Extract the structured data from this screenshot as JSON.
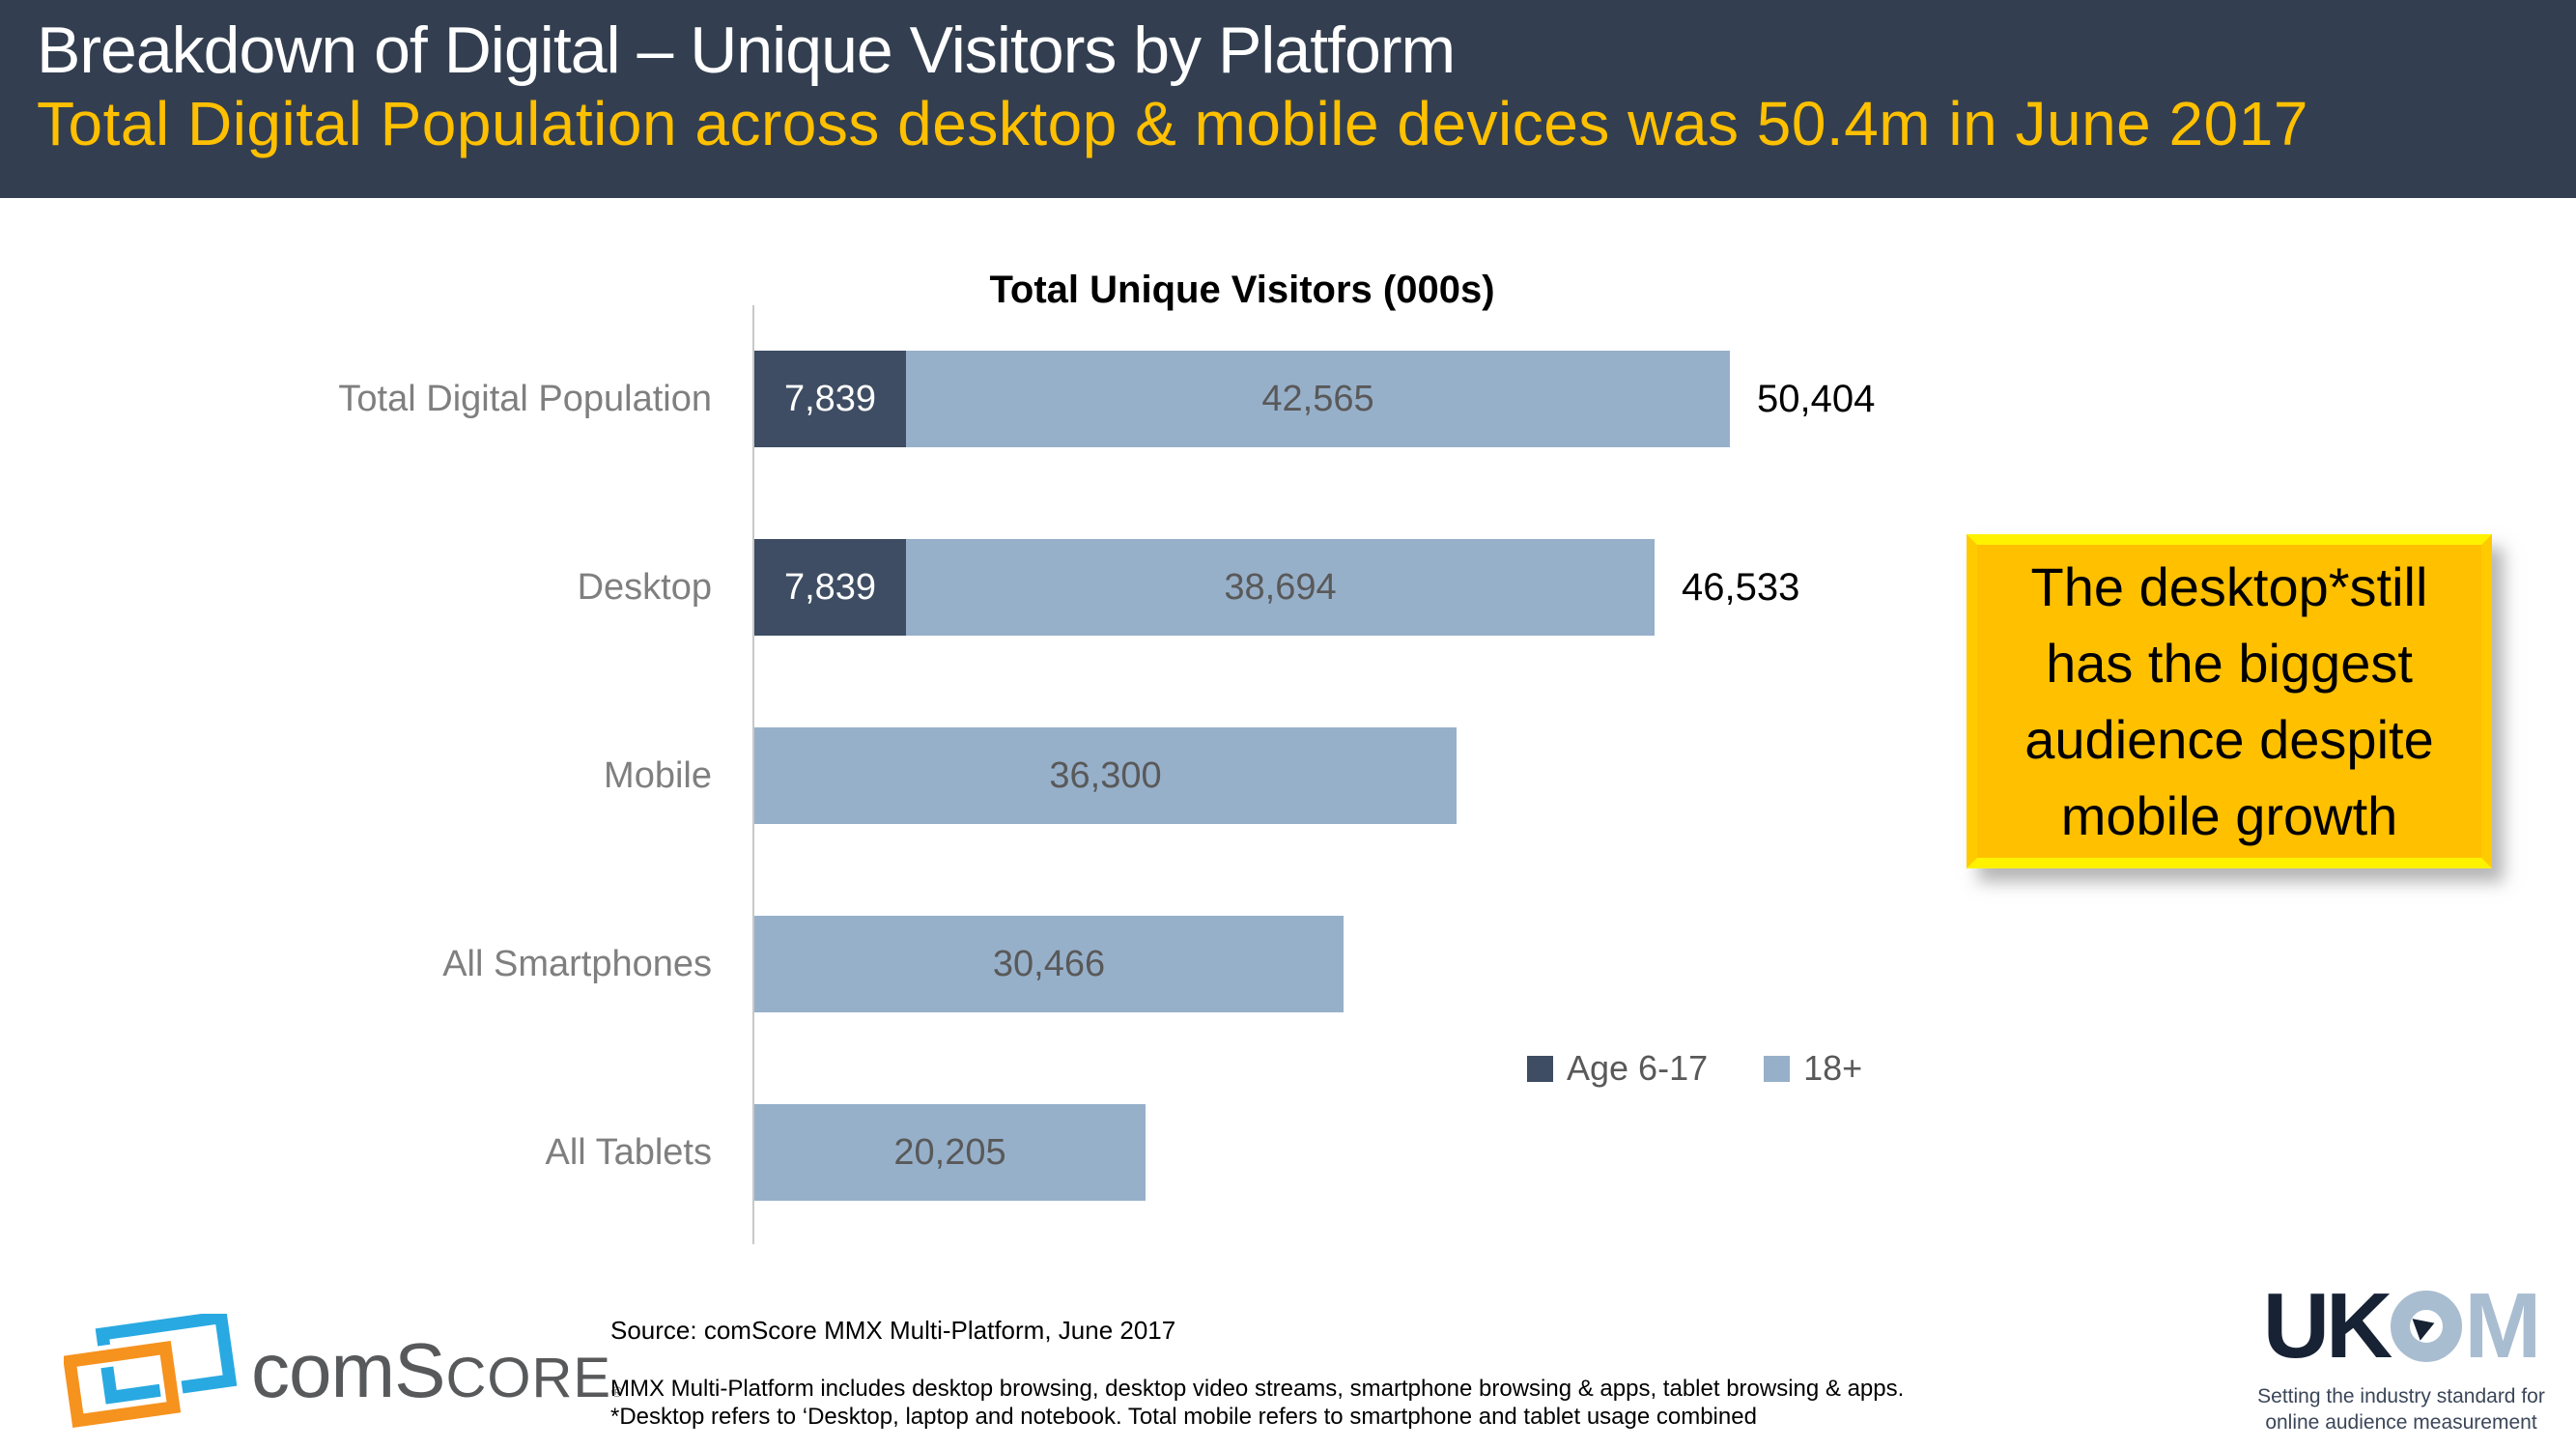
{
  "header": {
    "title": "Breakdown of Digital – Unique Visitors by Platform",
    "subtitle": "Total Digital Population across desktop & mobile devices was 50.4m in June 2017",
    "bg_color": "#333F50",
    "title_color": "#FFFFFF",
    "subtitle_color": "#FFC000"
  },
  "chart_data": {
    "type": "bar",
    "orientation": "horizontal-stacked",
    "title": "Total Unique Visitors (000s)",
    "categories": [
      "Total Digital Population",
      "Desktop",
      "Mobile",
      "All Smartphones",
      "All Tablets"
    ],
    "series": [
      {
        "name": "Age 6-17",
        "color": "#3E4D63",
        "values": [
          7839,
          7839,
          null,
          null,
          null
        ],
        "labels": [
          "7,839",
          "7,839",
          "",
          "",
          ""
        ]
      },
      {
        "name": "18+",
        "color": "#97B0CA",
        "values": [
          42565,
          38694,
          36300,
          30466,
          20205
        ],
        "labels": [
          "42,565",
          "38,694",
          "36,300",
          "30,466",
          "20,205"
        ]
      }
    ],
    "totals": [
      50404,
      46533,
      null,
      null,
      null
    ],
    "total_labels": [
      "50,404",
      "46,533",
      "",
      "",
      ""
    ],
    "xlim": [
      0,
      50404
    ],
    "grid": false,
    "legend_position": "inside-lower-right",
    "category_label_color": "#7F7F7F",
    "value_label_color_on_light": "#595959",
    "value_label_color_on_dark": "#FFFFFF"
  },
  "legend": {
    "items": [
      {
        "label": "Age 6-17",
        "color": "#3E4D63"
      },
      {
        "label": "18+",
        "color": "#97B0CA"
      }
    ]
  },
  "callout": {
    "text": "The desktop*still\nhas the biggest\naudience despite\nmobile growth",
    "bg_color": "#FFC000",
    "edge_color": "#FFF200",
    "text_color": "#000000"
  },
  "footer": {
    "source_line": "Source: comScore MMX Multi-Platform,  June 2017",
    "note_line1": "MMX Multi-Platform includes desktop browsing, desktop video streams, smartphone browsing & apps, tablet browsing & apps.",
    "note_line2": "*Desktop refers to ‘Desktop, laptop and notebook. Total mobile refers to smartphone and tablet usage combined",
    "comscore_logo": {
      "text_com": "com",
      "text_s": "S",
      "text_core": "CORE",
      "reg_mark": "®",
      "blue": "#29A9E1",
      "orange": "#F6921E"
    },
    "ukom_logo": {
      "uk": "UK",
      "m": "M",
      "tagline": "Setting the industry standard for\nonline audience measurement",
      "dark": "#172334",
      "light": "#A9BDD1"
    }
  }
}
